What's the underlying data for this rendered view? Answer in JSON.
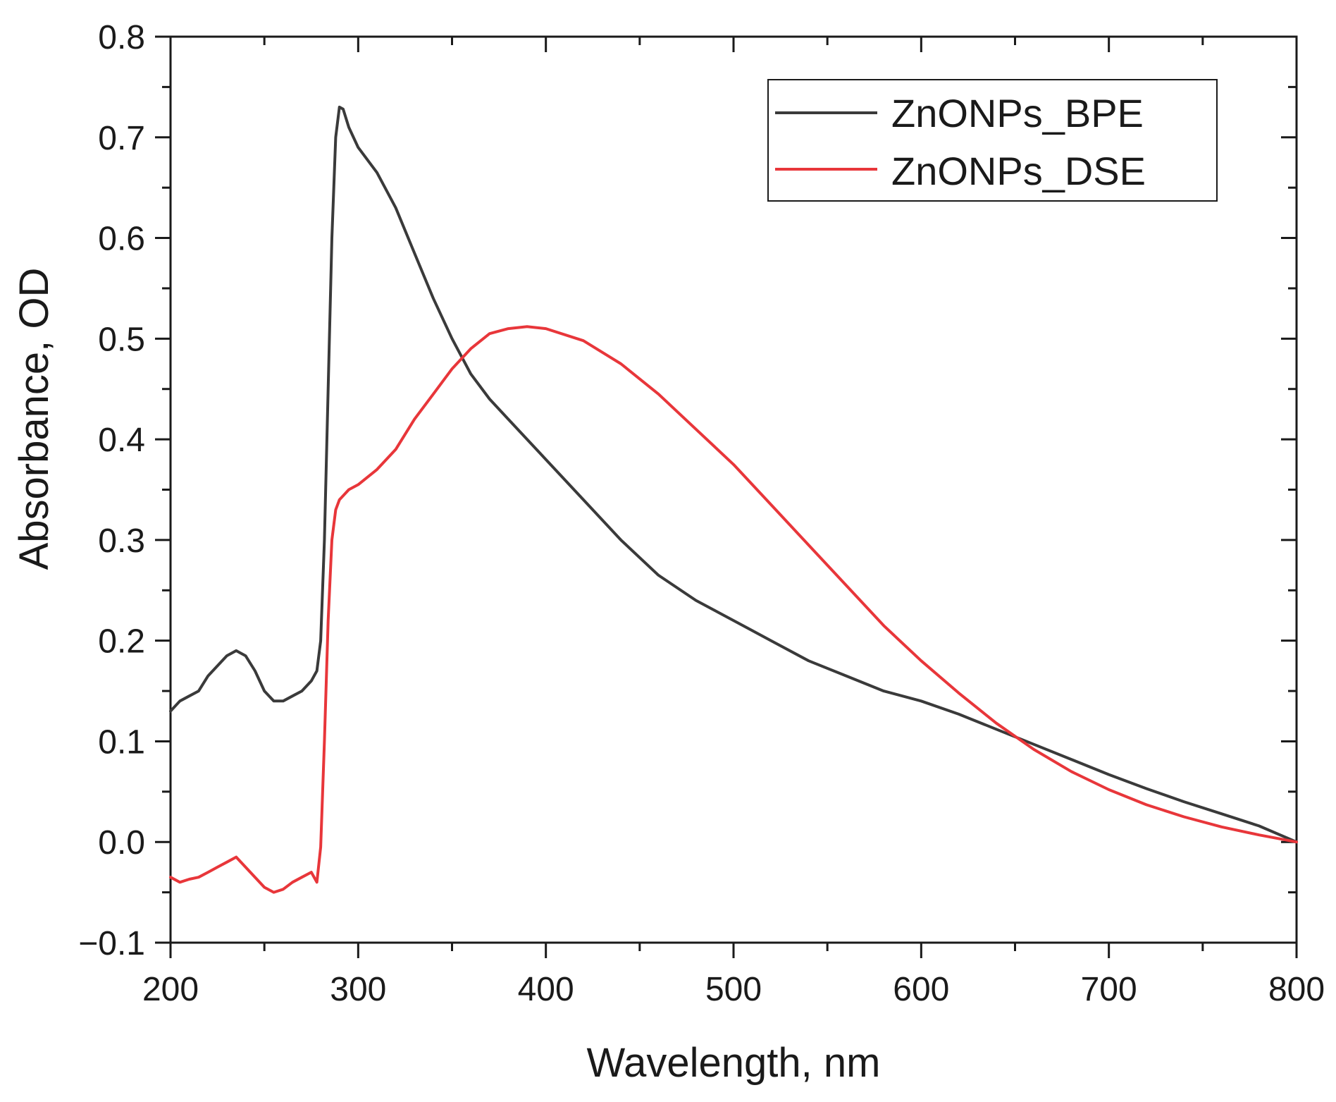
{
  "chart_data": {
    "type": "line",
    "title": "",
    "xlabel": "Wavelength, nm",
    "ylabel": "Absorbance, OD",
    "xlim": [
      200,
      800
    ],
    "ylim": [
      -0.1,
      0.8
    ],
    "x_ticks": [
      200,
      300,
      400,
      500,
      600,
      700,
      800
    ],
    "x_tick_labels": [
      "200",
      "300",
      "400",
      "500",
      "600",
      "700",
      "800"
    ],
    "y_ticks": [
      -0.1,
      0.0,
      0.1,
      0.2,
      0.3,
      0.4,
      0.5,
      0.6,
      0.7,
      0.8
    ],
    "y_tick_labels": [
      "−0.1",
      "0.0",
      "0.1",
      "0.2",
      "0.3",
      "0.4",
      "0.5",
      "0.6",
      "0.7",
      "0.8"
    ],
    "grid": false,
    "legend_position": "top-right",
    "series": [
      {
        "name": "ZnONPs_BPE",
        "color": "#3a3a3a",
        "x": [
          200,
          205,
          210,
          215,
          220,
          225,
          230,
          235,
          240,
          245,
          250,
          255,
          260,
          265,
          270,
          275,
          278,
          280,
          282,
          284,
          286,
          288,
          290,
          292,
          295,
          300,
          310,
          320,
          330,
          340,
          350,
          360,
          370,
          380,
          390,
          400,
          420,
          440,
          460,
          480,
          500,
          520,
          540,
          560,
          580,
          600,
          620,
          640,
          660,
          680,
          700,
          720,
          740,
          760,
          780,
          800
        ],
        "y": [
          0.13,
          0.14,
          0.145,
          0.15,
          0.165,
          0.175,
          0.185,
          0.19,
          0.185,
          0.17,
          0.15,
          0.14,
          0.14,
          0.145,
          0.15,
          0.16,
          0.17,
          0.2,
          0.3,
          0.45,
          0.6,
          0.7,
          0.73,
          0.728,
          0.71,
          0.69,
          0.665,
          0.63,
          0.585,
          0.54,
          0.5,
          0.465,
          0.44,
          0.42,
          0.4,
          0.38,
          0.34,
          0.3,
          0.265,
          0.24,
          0.22,
          0.2,
          0.18,
          0.165,
          0.15,
          0.14,
          0.127,
          0.112,
          0.097,
          0.082,
          0.067,
          0.053,
          0.04,
          0.028,
          0.016,
          0.0
        ]
      },
      {
        "name": "ZnONPs_DSE",
        "color": "#e8363a",
        "x": [
          200,
          205,
          210,
          215,
          220,
          225,
          230,
          235,
          240,
          245,
          250,
          255,
          260,
          265,
          270,
          275,
          278,
          280,
          282,
          284,
          286,
          288,
          290,
          295,
          300,
          310,
          320,
          330,
          340,
          350,
          360,
          370,
          380,
          390,
          400,
          420,
          440,
          460,
          480,
          500,
          520,
          540,
          560,
          580,
          600,
          620,
          640,
          660,
          680,
          700,
          720,
          740,
          760,
          780,
          800
        ],
        "y": [
          -0.035,
          -0.04,
          -0.037,
          -0.035,
          -0.03,
          -0.025,
          -0.02,
          -0.015,
          -0.025,
          -0.035,
          -0.045,
          -0.05,
          -0.047,
          -0.04,
          -0.035,
          -0.03,
          -0.04,
          -0.005,
          0.1,
          0.22,
          0.3,
          0.33,
          0.34,
          0.35,
          0.355,
          0.37,
          0.39,
          0.42,
          0.445,
          0.47,
          0.49,
          0.505,
          0.51,
          0.512,
          0.51,
          0.498,
          0.475,
          0.445,
          0.41,
          0.375,
          0.335,
          0.295,
          0.255,
          0.215,
          0.18,
          0.148,
          0.118,
          0.092,
          0.07,
          0.052,
          0.037,
          0.025,
          0.015,
          0.007,
          0.0
        ]
      }
    ]
  }
}
